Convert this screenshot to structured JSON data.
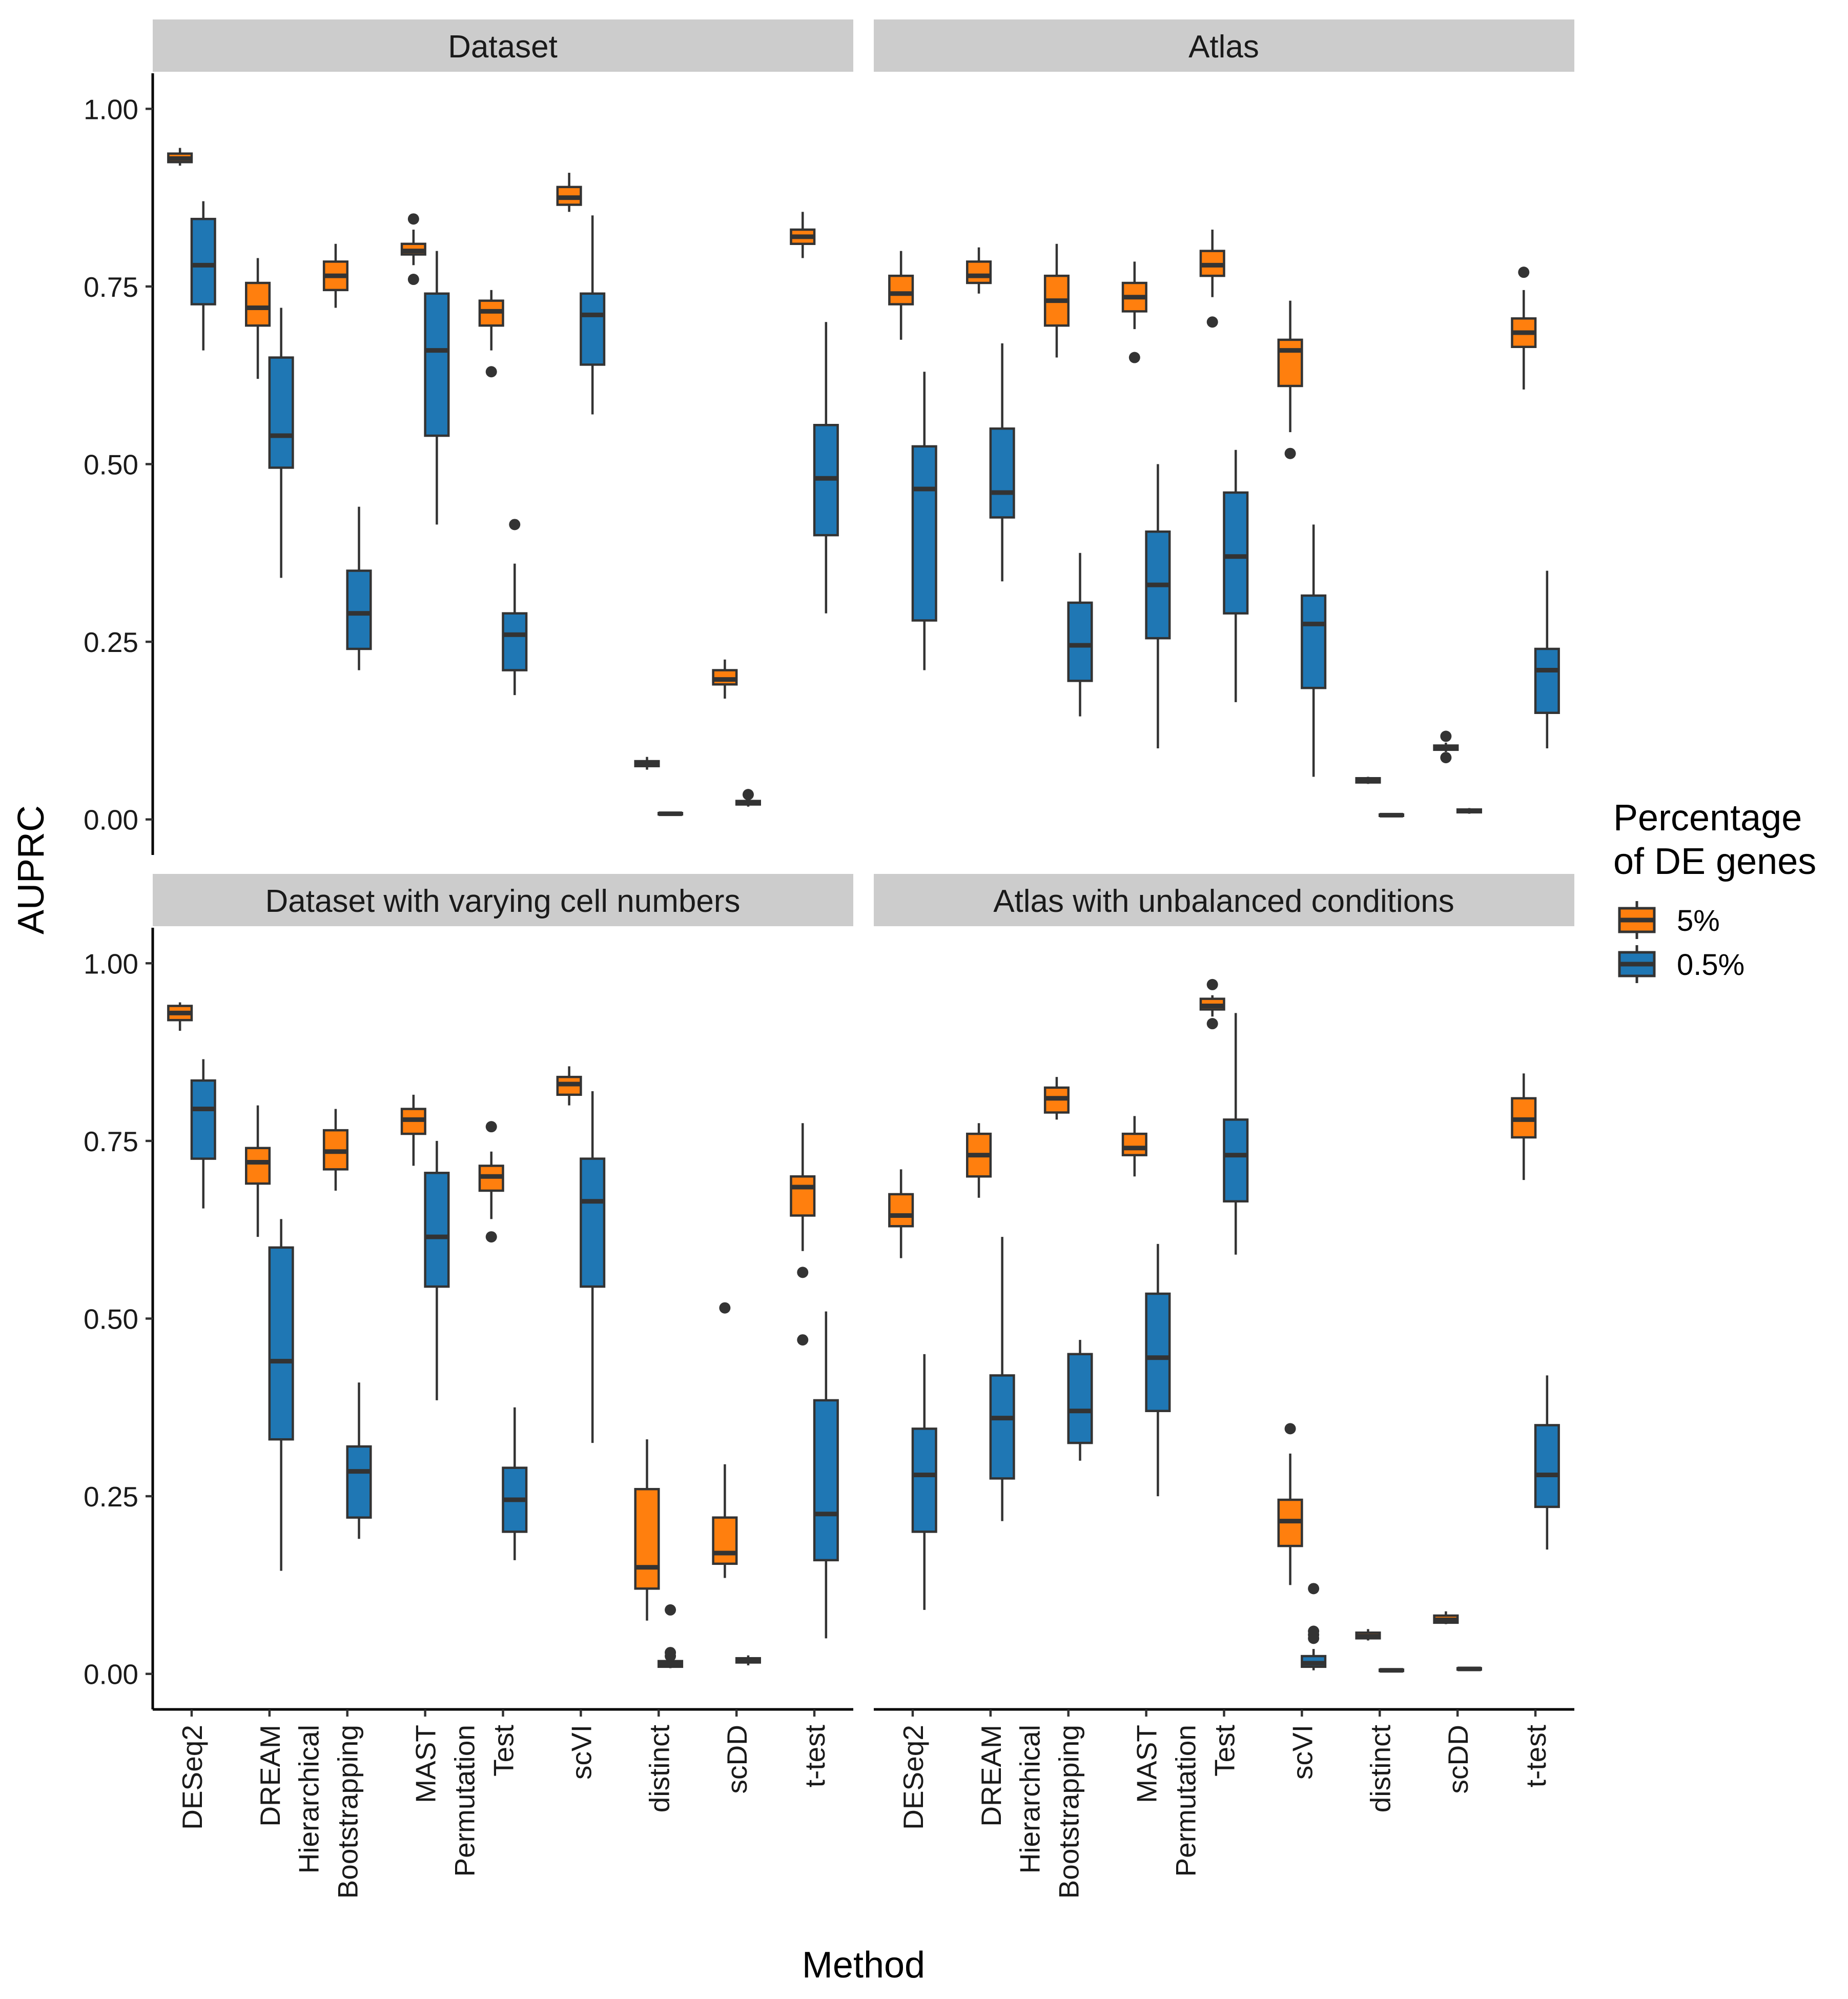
{
  "chart_data": {
    "type": "boxplot",
    "xlabel": "Method",
    "ylabel": "AUPRC",
    "ylim": [
      -0.05,
      1.05
    ],
    "yticks": [
      "0.00",
      "0.25",
      "0.50",
      "0.75",
      "1.00"
    ],
    "categories": [
      [
        "DESeq2"
      ],
      [
        "DREAM"
      ],
      [
        "Hierarchical",
        "Bootstrapping"
      ],
      [
        "MAST"
      ],
      [
        "Permutation",
        "Test"
      ],
      [
        "scVI"
      ],
      [
        "distinct"
      ],
      [
        "scDD"
      ],
      [
        "t-test"
      ]
    ],
    "legend": {
      "title": [
        "Percentage",
        "of DE genes"
      ],
      "placement": "right",
      "entries": [
        {
          "label": "5%",
          "color": "#FF7F0E"
        },
        {
          "label": "0.5%",
          "color": "#1F77B4"
        }
      ]
    },
    "panels": [
      {
        "title": "Dataset",
        "series": [
          {
            "name": "5%",
            "boxes": [
              {
                "min": 0.92,
                "q1": 0.925,
                "median": 0.93,
                "q3": 0.937,
                "max": 0.945,
                "outliers": []
              },
              {
                "min": 0.62,
                "q1": 0.695,
                "median": 0.72,
                "q3": 0.755,
                "max": 0.79,
                "outliers": []
              },
              {
                "min": 0.72,
                "q1": 0.745,
                "median": 0.765,
                "q3": 0.785,
                "max": 0.81,
                "outliers": []
              },
              {
                "min": 0.78,
                "q1": 0.795,
                "median": 0.8,
                "q3": 0.81,
                "max": 0.83,
                "outliers": [
                  0.845,
                  0.76
                ]
              },
              {
                "min": 0.66,
                "q1": 0.695,
                "median": 0.715,
                "q3": 0.73,
                "max": 0.745,
                "outliers": [
                  0.63
                ]
              },
              {
                "min": 0.855,
                "q1": 0.865,
                "median": 0.875,
                "q3": 0.89,
                "max": 0.91,
                "outliers": []
              },
              {
                "min": 0.07,
                "q1": 0.075,
                "median": 0.078,
                "q3": 0.082,
                "max": 0.088,
                "outliers": []
              },
              {
                "min": 0.17,
                "q1": 0.19,
                "median": 0.197,
                "q3": 0.21,
                "max": 0.225,
                "outliers": []
              },
              {
                "min": 0.79,
                "q1": 0.81,
                "median": 0.82,
                "q3": 0.83,
                "max": 0.855,
                "outliers": []
              }
            ]
          },
          {
            "name": "0.5%",
            "boxes": [
              {
                "min": 0.66,
                "q1": 0.725,
                "median": 0.78,
                "q3": 0.845,
                "max": 0.87,
                "outliers": []
              },
              {
                "min": 0.34,
                "q1": 0.495,
                "median": 0.54,
                "q3": 0.65,
                "max": 0.72,
                "outliers": []
              },
              {
                "min": 0.21,
                "q1": 0.24,
                "median": 0.29,
                "q3": 0.35,
                "max": 0.44,
                "outliers": []
              },
              {
                "min": 0.415,
                "q1": 0.54,
                "median": 0.66,
                "q3": 0.74,
                "max": 0.8,
                "outliers": []
              },
              {
                "min": 0.175,
                "q1": 0.21,
                "median": 0.26,
                "q3": 0.29,
                "max": 0.36,
                "outliers": [
                  0.415
                ]
              },
              {
                "min": 0.57,
                "q1": 0.64,
                "median": 0.71,
                "q3": 0.74,
                "max": 0.85,
                "outliers": []
              },
              {
                "min": 0.006,
                "q1": 0.007,
                "median": 0.008,
                "q3": 0.009,
                "max": 0.01,
                "outliers": []
              },
              {
                "min": 0.018,
                "q1": 0.021,
                "median": 0.023,
                "q3": 0.026,
                "max": 0.03,
                "outliers": [
                  0.035
                ]
              },
              {
                "min": 0.29,
                "q1": 0.4,
                "median": 0.48,
                "q3": 0.555,
                "max": 0.7,
                "outliers": []
              }
            ]
          }
        ]
      },
      {
        "title": "Atlas",
        "series": [
          {
            "name": "5%",
            "boxes": [
              {
                "min": 0.675,
                "q1": 0.725,
                "median": 0.74,
                "q3": 0.765,
                "max": 0.8,
                "outliers": []
              },
              {
                "min": 0.74,
                "q1": 0.755,
                "median": 0.765,
                "q3": 0.785,
                "max": 0.805,
                "outliers": []
              },
              {
                "min": 0.65,
                "q1": 0.695,
                "median": 0.73,
                "q3": 0.765,
                "max": 0.81,
                "outliers": []
              },
              {
                "min": 0.69,
                "q1": 0.715,
                "median": 0.735,
                "q3": 0.755,
                "max": 0.785,
                "outliers": [
                  0.65
                ]
              },
              {
                "min": 0.735,
                "q1": 0.765,
                "median": 0.78,
                "q3": 0.8,
                "max": 0.83,
                "outliers": [
                  0.7
                ]
              },
              {
                "min": 0.545,
                "q1": 0.61,
                "median": 0.66,
                "q3": 0.675,
                "max": 0.73,
                "outliers": [
                  0.515
                ]
              },
              {
                "min": 0.05,
                "q1": 0.052,
                "median": 0.055,
                "q3": 0.058,
                "max": 0.06,
                "outliers": []
              },
              {
                "min": 0.095,
                "q1": 0.098,
                "median": 0.1,
                "q3": 0.104,
                "max": 0.108,
                "outliers": [
                  0.117,
                  0.087
                ]
              },
              {
                "min": 0.605,
                "q1": 0.665,
                "median": 0.685,
                "q3": 0.705,
                "max": 0.745,
                "outliers": [
                  0.77
                ]
              }
            ]
          },
          {
            "name": "0.5%",
            "boxes": [
              {
                "min": 0.21,
                "q1": 0.28,
                "median": 0.465,
                "q3": 0.525,
                "max": 0.63,
                "outliers": []
              },
              {
                "min": 0.335,
                "q1": 0.425,
                "median": 0.46,
                "q3": 0.55,
                "max": 0.67,
                "outliers": []
              },
              {
                "min": 0.145,
                "q1": 0.195,
                "median": 0.245,
                "q3": 0.305,
                "max": 0.375,
                "outliers": []
              },
              {
                "min": 0.1,
                "q1": 0.255,
                "median": 0.33,
                "q3": 0.405,
                "max": 0.5,
                "outliers": []
              },
              {
                "min": 0.165,
                "q1": 0.29,
                "median": 0.37,
                "q3": 0.46,
                "max": 0.52,
                "outliers": []
              },
              {
                "min": 0.06,
                "q1": 0.185,
                "median": 0.275,
                "q3": 0.315,
                "max": 0.415,
                "outliers": []
              },
              {
                "min": 0.004,
                "q1": 0.005,
                "median": 0.006,
                "q3": 0.007,
                "max": 0.008,
                "outliers": []
              },
              {
                "min": 0.008,
                "q1": 0.01,
                "median": 0.012,
                "q3": 0.014,
                "max": 0.016,
                "outliers": []
              },
              {
                "min": 0.1,
                "q1": 0.15,
                "median": 0.21,
                "q3": 0.24,
                "max": 0.35,
                "outliers": []
              }
            ]
          }
        ]
      },
      {
        "title": "Dataset with varying cell numbers",
        "series": [
          {
            "name": "5%",
            "boxes": [
              {
                "min": 0.905,
                "q1": 0.92,
                "median": 0.93,
                "q3": 0.94,
                "max": 0.945,
                "outliers": []
              },
              {
                "min": 0.615,
                "q1": 0.69,
                "median": 0.72,
                "q3": 0.74,
                "max": 0.8,
                "outliers": []
              },
              {
                "min": 0.68,
                "q1": 0.71,
                "median": 0.735,
                "q3": 0.765,
                "max": 0.795,
                "outliers": []
              },
              {
                "min": 0.715,
                "q1": 0.76,
                "median": 0.78,
                "q3": 0.795,
                "max": 0.815,
                "outliers": []
              },
              {
                "min": 0.64,
                "q1": 0.68,
                "median": 0.7,
                "q3": 0.715,
                "max": 0.735,
                "outliers": [
                  0.77,
                  0.615
                ]
              },
              {
                "min": 0.8,
                "q1": 0.815,
                "median": 0.83,
                "q3": 0.84,
                "max": 0.855,
                "outliers": []
              },
              {
                "min": 0.075,
                "q1": 0.12,
                "median": 0.15,
                "q3": 0.26,
                "max": 0.33,
                "outliers": []
              },
              {
                "min": 0.135,
                "q1": 0.155,
                "median": 0.17,
                "q3": 0.22,
                "max": 0.295,
                "outliers": [
                  0.515
                ]
              },
              {
                "min": 0.595,
                "q1": 0.645,
                "median": 0.685,
                "q3": 0.7,
                "max": 0.775,
                "outliers": [
                  0.565,
                  0.47
                ]
              }
            ]
          },
          {
            "name": "0.5%",
            "boxes": [
              {
                "min": 0.655,
                "q1": 0.725,
                "median": 0.795,
                "q3": 0.835,
                "max": 0.865,
                "outliers": []
              },
              {
                "min": 0.145,
                "q1": 0.33,
                "median": 0.44,
                "q3": 0.6,
                "max": 0.64,
                "outliers": []
              },
              {
                "min": 0.19,
                "q1": 0.22,
                "median": 0.285,
                "q3": 0.32,
                "max": 0.41,
                "outliers": []
              },
              {
                "min": 0.385,
                "q1": 0.545,
                "median": 0.615,
                "q3": 0.705,
                "max": 0.75,
                "outliers": []
              },
              {
                "min": 0.16,
                "q1": 0.2,
                "median": 0.245,
                "q3": 0.29,
                "max": 0.375,
                "outliers": []
              },
              {
                "min": 0.325,
                "q1": 0.545,
                "median": 0.665,
                "q3": 0.725,
                "max": 0.82,
                "outliers": []
              },
              {
                "min": 0.008,
                "q1": 0.01,
                "median": 0.014,
                "q3": 0.018,
                "max": 0.02,
                "outliers": [
                  0.09,
                  0.03,
                  0.025
                ]
              },
              {
                "min": 0.012,
                "q1": 0.016,
                "median": 0.019,
                "q3": 0.022,
                "max": 0.026,
                "outliers": []
              },
              {
                "min": 0.05,
                "q1": 0.16,
                "median": 0.225,
                "q3": 0.385,
                "max": 0.51,
                "outliers": []
              }
            ]
          }
        ]
      },
      {
        "title": "Atlas with unbalanced conditions",
        "series": [
          {
            "name": "5%",
            "boxes": [
              {
                "min": 0.585,
                "q1": 0.63,
                "median": 0.645,
                "q3": 0.675,
                "max": 0.71,
                "outliers": []
              },
              {
                "min": 0.67,
                "q1": 0.7,
                "median": 0.73,
                "q3": 0.76,
                "max": 0.775,
                "outliers": []
              },
              {
                "min": 0.78,
                "q1": 0.79,
                "median": 0.81,
                "q3": 0.825,
                "max": 0.84,
                "outliers": []
              },
              {
                "min": 0.7,
                "q1": 0.73,
                "median": 0.74,
                "q3": 0.76,
                "max": 0.785,
                "outliers": []
              },
              {
                "min": 0.925,
                "q1": 0.935,
                "median": 0.94,
                "q3": 0.95,
                "max": 0.955,
                "outliers": [
                  0.97,
                  0.915
                ]
              },
              {
                "min": 0.125,
                "q1": 0.18,
                "median": 0.215,
                "q3": 0.245,
                "max": 0.31,
                "outliers": [
                  0.345
                ]
              },
              {
                "min": 0.047,
                "q1": 0.05,
                "median": 0.053,
                "q3": 0.058,
                "max": 0.063,
                "outliers": []
              },
              {
                "min": 0.07,
                "q1": 0.072,
                "median": 0.076,
                "q3": 0.082,
                "max": 0.088,
                "outliers": []
              },
              {
                "min": 0.695,
                "q1": 0.755,
                "median": 0.78,
                "q3": 0.81,
                "max": 0.845,
                "outliers": []
              }
            ]
          },
          {
            "name": "0.5%",
            "boxes": [
              {
                "min": 0.09,
                "q1": 0.2,
                "median": 0.28,
                "q3": 0.345,
                "max": 0.45,
                "outliers": []
              },
              {
                "min": 0.215,
                "q1": 0.275,
                "median": 0.36,
                "q3": 0.42,
                "max": 0.615,
                "outliers": []
              },
              {
                "min": 0.3,
                "q1": 0.325,
                "median": 0.37,
                "q3": 0.45,
                "max": 0.47,
                "outliers": []
              },
              {
                "min": 0.25,
                "q1": 0.37,
                "median": 0.445,
                "q3": 0.535,
                "max": 0.605,
                "outliers": []
              },
              {
                "min": 0.59,
                "q1": 0.665,
                "median": 0.73,
                "q3": 0.78,
                "max": 0.93,
                "outliers": []
              },
              {
                "min": 0.005,
                "q1": 0.01,
                "median": 0.015,
                "q3": 0.025,
                "max": 0.035,
                "outliers": [
                  0.12,
                  0.06,
                  0.055,
                  0.05
                ]
              },
              {
                "min": 0.003,
                "q1": 0.004,
                "median": 0.005,
                "q3": 0.006,
                "max": 0.007,
                "outliers": []
              },
              {
                "min": 0.005,
                "q1": 0.006,
                "median": 0.007,
                "q3": 0.008,
                "max": 0.009,
                "outliers": []
              },
              {
                "min": 0.175,
                "q1": 0.235,
                "median": 0.28,
                "q3": 0.35,
                "max": 0.42,
                "outliers": []
              }
            ]
          }
        ]
      }
    ]
  }
}
